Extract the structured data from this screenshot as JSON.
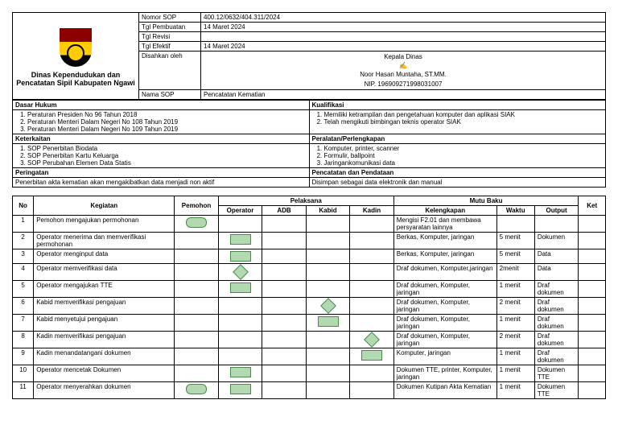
{
  "header": {
    "org_name": "Dinas Kependudukan dan Pencatatan Sipil Kabupaten Ngawi",
    "fields": {
      "nomor_sop_lbl": "Nomor SOP",
      "nomor_sop": "400.12/0632/404.311/2024",
      "tgl_pembuatan_lbl": "Tgl Pembuatan",
      "tgl_pembuatan": "14 Maret 2024",
      "tgl_revisi_lbl": "Tgl Revisi",
      "tgl_revisi": "",
      "tgl_efektif_lbl": "Tgl Efektif",
      "tgl_efektif": "14 Maret 2024",
      "disahkan_lbl": "Disahkan oleh",
      "kepala": "Kepala Dinas",
      "pejabat": "Noor Hasan Muntaha, ST.MM.",
      "nip": "NIP. 196909271998031007",
      "nama_sop_lbl": "Nama SOP",
      "nama_sop": "Pencatatan Kematian"
    }
  },
  "sections": {
    "dasar_hukum_lbl": "Dasar Hukum",
    "dasar_hukum": [
      "Peraturan Presiden No 96 Tahun 2018",
      "Peraturan Menteri Dalam Negeri No 108 Tahun 2019",
      "Peraturan Menteri Dalam Negeri No 109 Tahun 2019"
    ],
    "kualifikasi_lbl": "Kualifikasi",
    "kualifikasi": [
      "Memiliki ketrampilan dan pengetahuan komputer dan aplikasi SIAK",
      "Telah mengikuti bimbingan teknis operator SIAK"
    ],
    "keterkaitan_lbl": "Keterkaitan",
    "keterkaitan": [
      "SOP Penerbitan Biodata",
      "SOP Penerbitan Kartu Keluarga",
      "SOP Perubahan Elemen Data Statis"
    ],
    "peralatan_lbl": "Peralatan/Perlengkapan",
    "peralatan": [
      "Komputer, printer, scanner",
      "Formulir, ballpoint",
      "Jaringankomunikasi data"
    ],
    "peringatan_lbl": "Peringatan",
    "peringatan": "Penerbitan akta kematian akan mengakibatkan data menjadi non aktif",
    "pencatatan_lbl": "Pencatatan dan Pendataan",
    "pencatatan": "Disimpan sebagai data elektronik dan manual"
  },
  "table": {
    "headers": {
      "no": "No",
      "kegiatan": "Kegiatan",
      "pemohon": "Pemohon",
      "pelaksana": "Pelaksana",
      "operator": "Operator",
      "adb": "ADB",
      "kabid": "Kabid",
      "kadin": "Kadin",
      "mutu": "Mutu Baku",
      "kelengkapan": "Kelengkapan",
      "waktu": "Waktu",
      "output": "Output",
      "ket": "Ket"
    },
    "rows": [
      {
        "no": "1",
        "kg": "Pemohon mengajukan permohonan",
        "kl": "Mengisi F2.01 dan membawa persyaratan lainnya",
        "wk": "",
        "ou": ""
      },
      {
        "no": "2",
        "kg": "Operator menerima dan memverifikasi permohonan",
        "kl": "Berkas, Komputer, jaringan",
        "wk": "5 menit",
        "ou": "Dokumen"
      },
      {
        "no": "3",
        "kg": "Operator menginput data",
        "kl": "Berkas, Komputer, jaringan",
        "wk": "5 menit",
        "ou": "Data"
      },
      {
        "no": "4",
        "kg": "Operator memverifikasi data",
        "kl": "Draf dokumen, Komputer,jaringan",
        "wk": "2menit",
        "ou": "Data"
      },
      {
        "no": "5",
        "kg": "Operator mengajukan TTE",
        "kl": "Draf dokumen, Komputer, jaringan",
        "wk": "1 menit",
        "ou": "Draf dokumen"
      },
      {
        "no": "6",
        "kg": "Kabid memverifikasi pengajuan",
        "kl": "Draf dokumen, Komputer, jaringan",
        "wk": "2 menit",
        "ou": "Draf dokumen"
      },
      {
        "no": "7",
        "kg": "Kabid menyetujui pengajuan",
        "kl": "Draf dokumen, Komputer, jaringan",
        "wk": "1 menit",
        "ou": "Draf dokumen"
      },
      {
        "no": "8",
        "kg": "Kadin memverifikasi pengajuan",
        "kl": "Draf dokumen, Komputer, jaringan",
        "wk": "2 menit",
        "ou": "Draf dokumen"
      },
      {
        "no": "9",
        "kg": "Kadin menandatangani dokumen",
        "kl": "Komputer, jaringan",
        "wk": "1 menit",
        "ou": "Draf dokumen"
      },
      {
        "no": "10",
        "kg": "Operator mencetak Dokumen",
        "kl": "Dokumen TTE, printer, Komputer, jaringan",
        "wk": "1 menit",
        "ou": "Dokumen TTE"
      },
      {
        "no": "11",
        "kg": "Operator menyerahkan dokumen",
        "kl": "Dokumen Kutipan Akta Kematian",
        "wk": "1 menit",
        "ou": "Dokumen TTE"
      }
    ]
  }
}
